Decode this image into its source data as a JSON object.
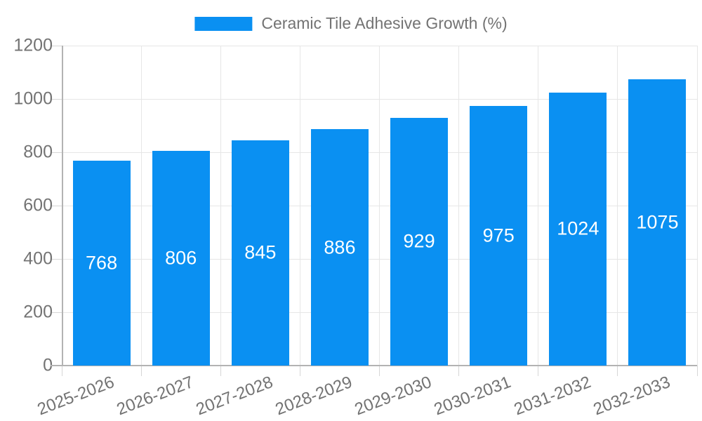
{
  "chart_data": {
    "type": "bar",
    "title": "",
    "legend": {
      "label": "Ceramic Tile Adhesive Growth (%)",
      "position": "top-center"
    },
    "categories": [
      "2025-2026",
      "2026-2027",
      "2027-2028",
      "2028-2029",
      "2029-2030",
      "2030-2031",
      "2031-2032",
      "2032-2033"
    ],
    "series": [
      {
        "name": "Ceramic Tile Adhesive Growth (%)",
        "values": [
          768,
          806,
          845,
          886,
          929,
          975,
          1024,
          1075
        ]
      }
    ],
    "value_labels_inside_bars": true,
    "xlabel": "",
    "ylabel": "",
    "ylim": [
      0,
      1200
    ],
    "yticks": [
      0,
      200,
      400,
      600,
      800,
      1000,
      1200
    ],
    "grid": true,
    "x_tick_label_rotation_deg": -21,
    "colors": {
      "bar_fill": "#0a90f2",
      "value_label_text": "#ffffff",
      "axis_text": "#737373",
      "legend_text": "#737373",
      "gridline": "#e6e6e6",
      "axis_line": "#b3b3b3",
      "tick_mark": "#d6d6d6",
      "background": "#ffffff"
    }
  }
}
